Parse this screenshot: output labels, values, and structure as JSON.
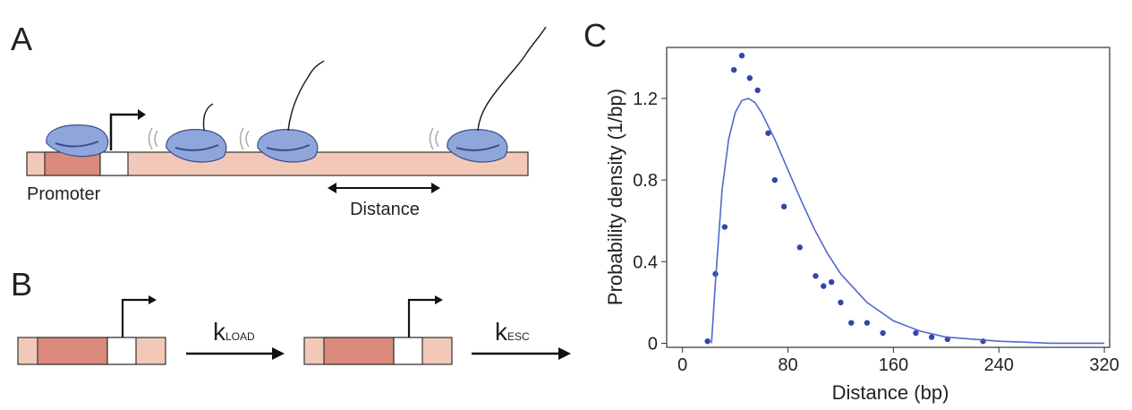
{
  "panels": {
    "A": {
      "label": "A",
      "promoter": "Promoter",
      "distance": "Distance"
    },
    "B": {
      "label": "B",
      "k_load": {
        "symbol": "k",
        "subscript": "LOAD"
      },
      "k_esc": {
        "symbol": "k",
        "subscript": "ESC"
      }
    }
  },
  "chart_data": {
    "type": "scatter",
    "panel_label": "C",
    "x_label": "Distance (bp)",
    "y_label": "Probability density (1/bp)",
    "xlim": [
      -12,
      324
    ],
    "ylim": [
      -0.02,
      1.45
    ],
    "xticks": [
      0,
      80,
      160,
      240,
      320
    ],
    "yticks": [
      0,
      0.4,
      0.8,
      1.2
    ],
    "series": [
      {
        "color": "#3346a8",
        "style": "points",
        "x": [
          19,
          25,
          32,
          39,
          45,
          51,
          57,
          65,
          70,
          77,
          89,
          101,
          107,
          113,
          120,
          128,
          140,
          152,
          177,
          189,
          201,
          228
        ],
        "values": [
          0.01,
          0.34,
          0.57,
          1.34,
          1.41,
          1.3,
          1.24,
          1.03,
          0.8,
          0.67,
          0.47,
          0.33,
          0.28,
          0.3,
          0.2,
          0.1,
          0.1,
          0.05,
          0.05,
          0.03,
          0.02,
          0.01
        ]
      },
      {
        "color": "#5068cc",
        "style": "line",
        "x": [
          22,
          25,
          30,
          35,
          40,
          45,
          50,
          55,
          60,
          70,
          80,
          90,
          100,
          110,
          120,
          140,
          160,
          180,
          200,
          240,
          280,
          320
        ],
        "values": [
          0,
          0.3,
          0.75,
          1.0,
          1.13,
          1.19,
          1.2,
          1.18,
          1.13,
          1.0,
          0.85,
          0.7,
          0.56,
          0.44,
          0.34,
          0.2,
          0.11,
          0.06,
          0.03,
          0.01,
          0,
          0
        ]
      }
    ]
  }
}
